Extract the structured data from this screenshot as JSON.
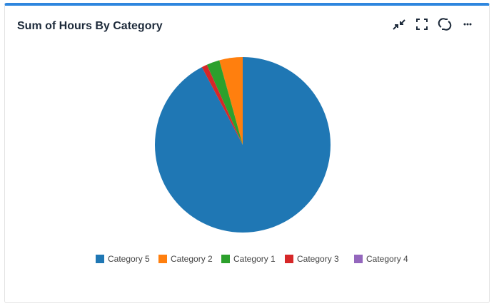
{
  "chart_data": {
    "type": "pie",
    "title": "Sum of Hours By Category",
    "categories": [
      "Category 5",
      "Category 2",
      "Category 1",
      "Category 3",
      "Category 4"
    ],
    "values": [
      92.3,
      4.3,
      2.4,
      1.0,
      0
    ],
    "colors": [
      "#1f77b4",
      "#ff7f0e",
      "#2ca02c",
      "#d62728",
      "#9467bd"
    ]
  }
}
